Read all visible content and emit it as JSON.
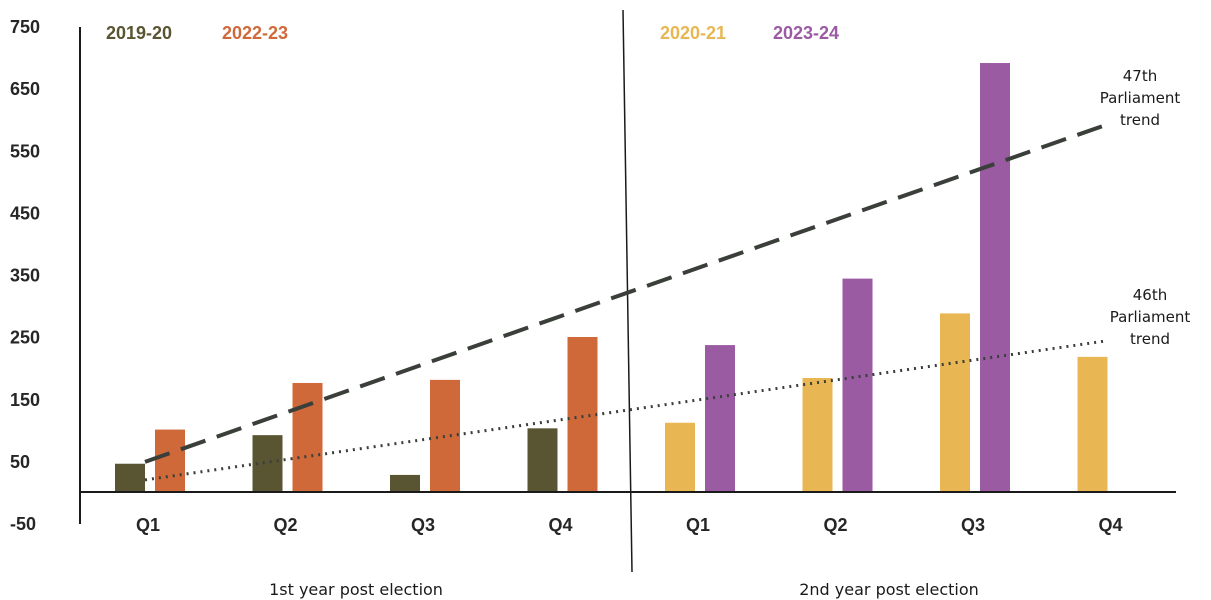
{
  "chart_data": {
    "type": "bar",
    "ylim": [
      -50,
      750
    ],
    "yticks": [
      750,
      650,
      550,
      450,
      350,
      250,
      150,
      50,
      -50
    ],
    "groups": [
      {
        "label": "1st year post election",
        "categories": [
          "Q1",
          "Q2",
          "Q3",
          "Q4"
        ],
        "series": [
          {
            "name": "2019-20",
            "color": "#595432",
            "values": [
              47,
              93,
              29,
              104
            ]
          },
          {
            "name": "2022-23",
            "color": "#d0693a",
            "values": [
              102,
              177,
              182,
              251
            ]
          }
        ]
      },
      {
        "label": "2nd year post election",
        "categories": [
          "Q1",
          "Q2",
          "Q3",
          "Q4"
        ],
        "series": [
          {
            "name": "2020-21",
            "color": "#e8b754",
            "values": [
              113,
              185,
              289,
              219
            ]
          },
          {
            "name": "2023-24",
            "color": "#9a5ba3",
            "values": [
              238,
              345,
              692,
              null
            ]
          }
        ]
      }
    ],
    "trendlines": [
      {
        "label": [
          "47th",
          "Parliament",
          "trend"
        ],
        "style": "dashed",
        "color": "#3a3f3a",
        "start": 50,
        "end": 593
      },
      {
        "label": [
          "46th",
          "Parliament",
          "trend"
        ],
        "style": "dotted",
        "color": "#3a3f3a",
        "start": 21,
        "end": 245
      }
    ]
  }
}
